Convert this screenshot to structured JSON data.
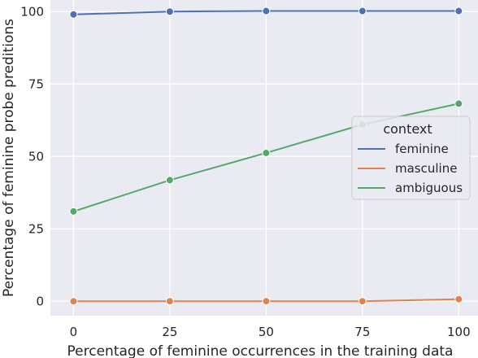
{
  "chart_data": {
    "type": "line",
    "xlabel": "Percentage of feminine occurrences in the training data",
    "ylabel": "Percentage of feminine probe preditions",
    "x": [
      0,
      25,
      50,
      75,
      100
    ],
    "xlim": [
      -6,
      105
    ],
    "ylim": [
      -5,
      104
    ],
    "xticks": [
      0,
      25,
      50,
      75,
      100
    ],
    "yticks": [
      0,
      25,
      50,
      75,
      100
    ],
    "grid": true,
    "legend": {
      "title": "context",
      "placement": "center-right"
    },
    "series": [
      {
        "name": "feminine",
        "color": "#4c72b0",
        "values": [
          99,
          100,
          100.2,
          100.2,
          100.2
        ]
      },
      {
        "name": "masculine",
        "color": "#dd8452",
        "values": [
          0,
          0,
          0,
          0,
          0.7
        ]
      },
      {
        "name": "ambiguous",
        "color": "#55a868",
        "values": [
          31,
          41.8,
          51.2,
          61,
          68.2
        ]
      }
    ]
  }
}
